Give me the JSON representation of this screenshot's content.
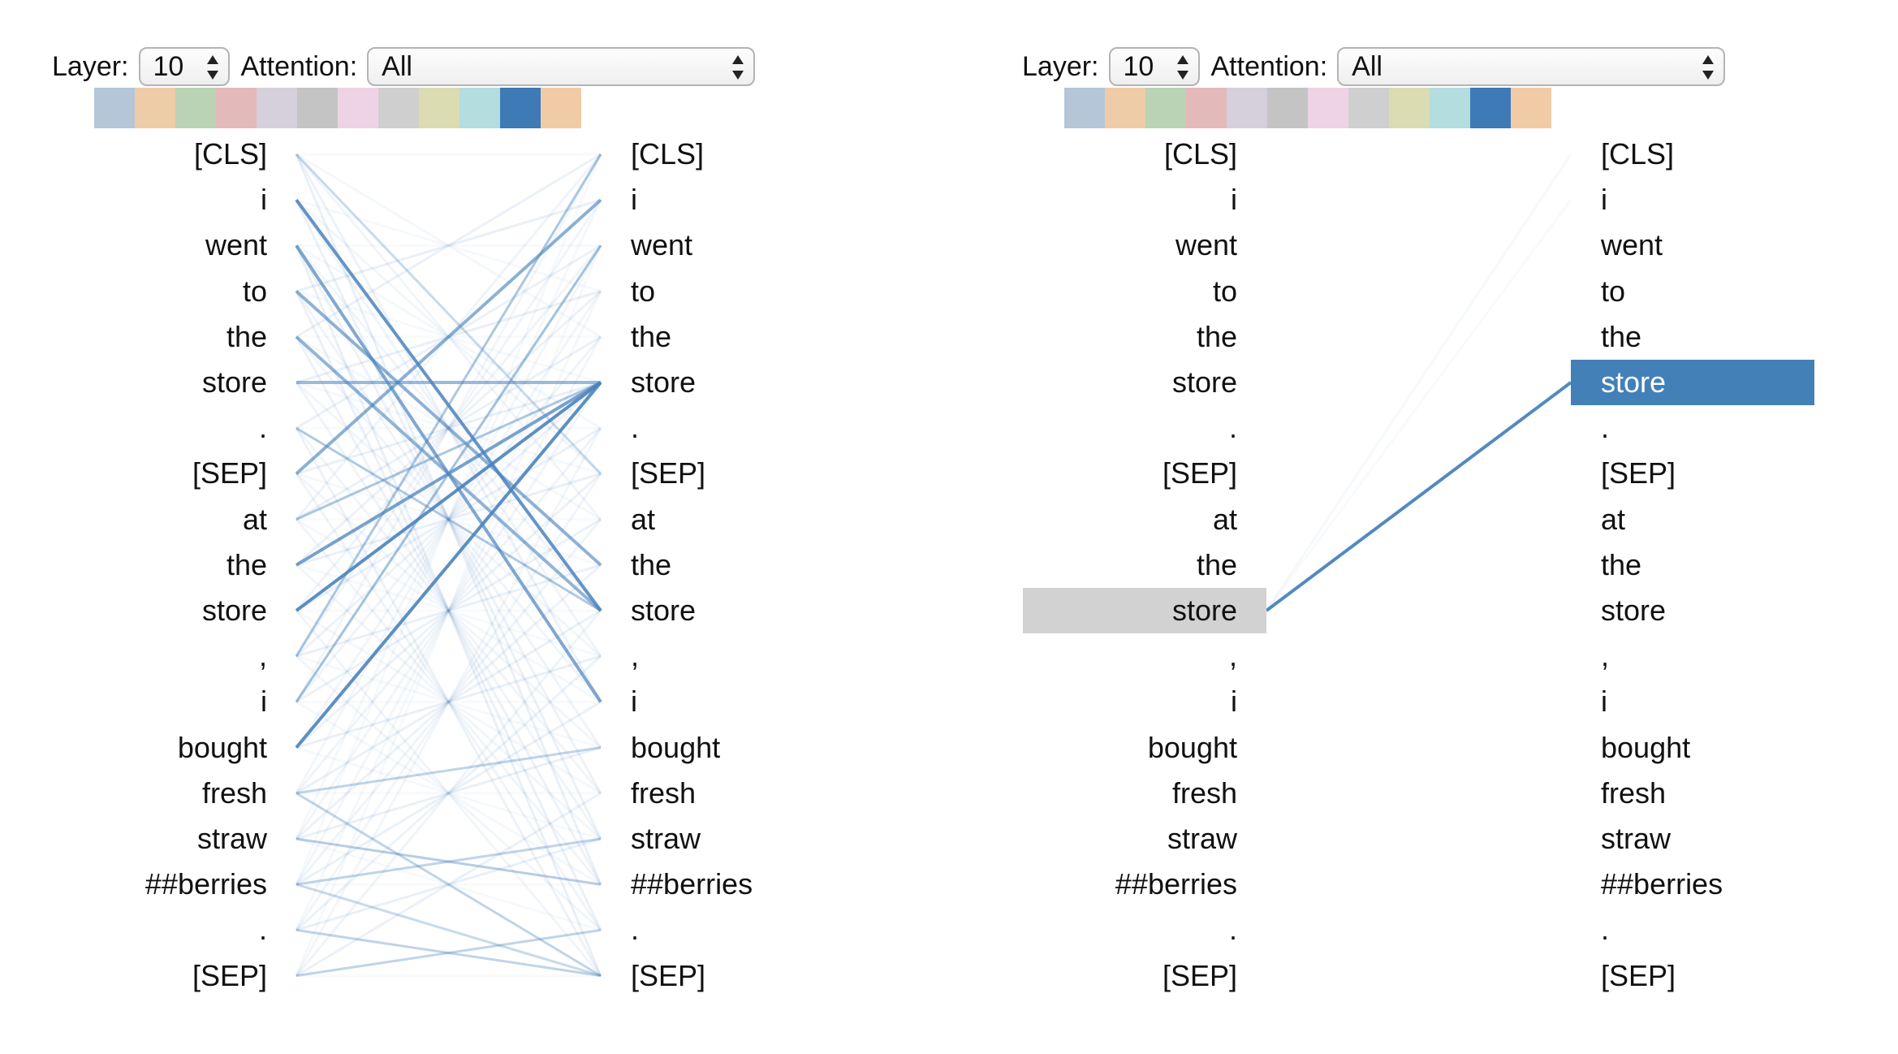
{
  "tokens": [
    "[CLS]",
    "i",
    "went",
    "to",
    "the",
    "store",
    ".",
    "[SEP]",
    "at",
    "the",
    "store",
    ",",
    "i",
    "bought",
    "fresh",
    "straw",
    "##berries",
    ".",
    "[SEP]"
  ],
  "controls": {
    "layer_label": "Layer:",
    "layer_value": "10",
    "attention_label": "Attention:",
    "attention_value": "All"
  },
  "head_colors": [
    "#b4c6d8",
    "#efcca8",
    "#b9d3b4",
    "#e3b9ba",
    "#d5d0dc",
    "#c4c4c4",
    "#eed3e4",
    "#cfcfcf",
    "#dcdcb3",
    "#b3dddf",
    "#3e7ab6",
    "#f1cba6"
  ],
  "attention_color": "#4a83bd",
  "highlight_colors": {
    "query": "#d2d2d2",
    "key": "#4480b8"
  },
  "left_panel": {
    "attention_edges": [
      {
        "from": 1,
        "to": 10,
        "weight": 0.85
      },
      {
        "from": 2,
        "to": 12,
        "weight": 0.7
      },
      {
        "from": 3,
        "to": 9,
        "weight": 0.6
      },
      {
        "from": 4,
        "to": 10,
        "weight": 0.6
      },
      {
        "from": 5,
        "to": 5,
        "weight": 0.55
      },
      {
        "from": 6,
        "to": 10,
        "weight": 0.4
      },
      {
        "from": 9,
        "to": 5,
        "weight": 0.75
      },
      {
        "from": 10,
        "to": 5,
        "weight": 0.9
      },
      {
        "from": 13,
        "to": 5,
        "weight": 0.9
      },
      {
        "from": 7,
        "to": 1,
        "weight": 0.6
      },
      {
        "from": 11,
        "to": 0,
        "weight": 0.45
      },
      {
        "from": 12,
        "to": 2,
        "weight": 0.5
      },
      {
        "from": 14,
        "to": 13,
        "weight": 0.35
      },
      {
        "from": 15,
        "to": 16,
        "weight": 0.4
      },
      {
        "from": 16,
        "to": 15,
        "weight": 0.35
      },
      {
        "from": 17,
        "to": 18,
        "weight": 0.35
      },
      {
        "from": 18,
        "to": 17,
        "weight": 0.35
      },
      {
        "from": 0,
        "to": 7,
        "weight": 0.3
      },
      {
        "from": 8,
        "to": 5,
        "weight": 0.45
      },
      {
        "from": 14,
        "to": 18,
        "weight": 0.3
      },
      {
        "from": 16,
        "to": 18,
        "weight": 0.3
      }
    ]
  },
  "right_panel": {
    "selected_query": 10,
    "selected_key": 5,
    "attention_edges": [
      {
        "from": 10,
        "to": 5,
        "weight": 0.95
      },
      {
        "from": 10,
        "to": 0,
        "weight": 0.05
      },
      {
        "from": 10,
        "to": 1,
        "weight": 0.04
      }
    ]
  }
}
